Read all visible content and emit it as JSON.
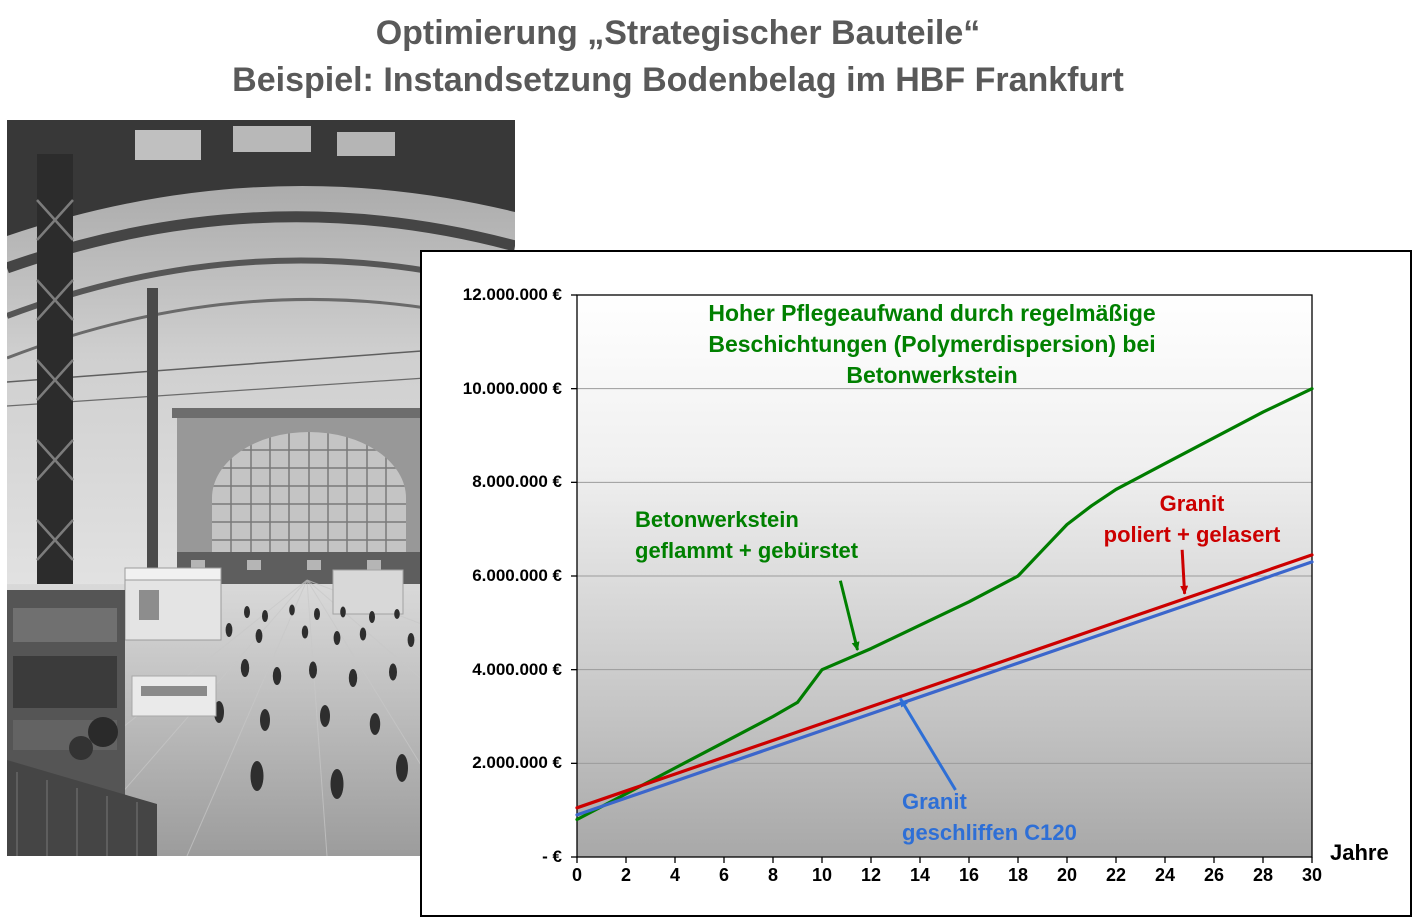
{
  "title": {
    "line1": "Optimierung „Strategischer Bauteile“",
    "line2": "Beispiel: Instandsetzung Bodenbelag im HBF Frankfurt",
    "color": "#595959"
  },
  "chart_data": {
    "type": "line",
    "title": "",
    "xlabel": "Jahre",
    "ylabel": "",
    "xlim": [
      0,
      30
    ],
    "ylim": [
      0,
      12000000
    ],
    "grid": "horizontal",
    "legend": "none",
    "x_ticks": [
      0,
      2,
      4,
      6,
      8,
      10,
      12,
      14,
      16,
      18,
      20,
      22,
      24,
      26,
      28,
      30
    ],
    "y_ticks": [
      {
        "value": 12000000,
        "label": "12.000.000 €"
      },
      {
        "value": 10000000,
        "label": "10.000.000 €"
      },
      {
        "value": 8000000,
        "label": "8.000.000 €"
      },
      {
        "value": 6000000,
        "label": "6.000.000 €"
      },
      {
        "value": 4000000,
        "label": "4.000.000 €"
      },
      {
        "value": 2000000,
        "label": "2.000.000 €"
      },
      {
        "value": 0,
        "label": "- €"
      }
    ],
    "series": [
      {
        "name": "Betonwerkstein geflammt + gebürstet",
        "color": "#007d00",
        "points": [
          [
            0,
            800000
          ],
          [
            2,
            1350000
          ],
          [
            4,
            1900000
          ],
          [
            6,
            2450000
          ],
          [
            8,
            3000000
          ],
          [
            9,
            3300000
          ],
          [
            10,
            4000000
          ],
          [
            12,
            4450000
          ],
          [
            14,
            4950000
          ],
          [
            16,
            5450000
          ],
          [
            18,
            6000000
          ],
          [
            19,
            6550000
          ],
          [
            20,
            7100000
          ],
          [
            21,
            7500000
          ],
          [
            22,
            7850000
          ],
          [
            24,
            8400000
          ],
          [
            26,
            8950000
          ],
          [
            28,
            9500000
          ],
          [
            30,
            10000000
          ]
        ]
      },
      {
        "name": "Granit poliert + gelasert",
        "color": "#cc0000",
        "points": [
          [
            0,
            1050000
          ],
          [
            30,
            6450000
          ]
        ]
      },
      {
        "name": "Granit geschliffen C120",
        "color": "#3b66cc",
        "points": [
          [
            0,
            900000
          ],
          [
            30,
            6300000
          ]
        ]
      }
    ],
    "annotations": [
      {
        "id": "pflegeaufwand-note",
        "color": "#008000",
        "lines": [
          "Hoher Pflegeaufwand durch regelmäßige",
          "Beschichtungen (Polymerdispersion)  bei",
          "Betonwerkstein"
        ]
      },
      {
        "id": "betonwerkstein-label",
        "color": "#008000",
        "lines": [
          "Betonwerkstein",
          "geflammt + gebürstet"
        ],
        "arrow": {
          "from": [
            10.75,
            5900000
          ],
          "to": [
            11.45,
            4420000
          ]
        }
      },
      {
        "id": "granit-poliert-label",
        "color": "#cc0000",
        "lines": [
          "Granit",
          "poliert + gelasert"
        ],
        "arrow": {
          "from": [
            24.7,
            6560000
          ],
          "to": [
            24.8,
            5620000
          ]
        }
      },
      {
        "id": "granit-geschliffen-label",
        "color": "#2e6fd6",
        "lines": [
          "Granit",
          "geschliffen C120"
        ],
        "arrow": {
          "from": [
            15.45,
            1430000
          ],
          "to": [
            13.2,
            3380000
          ]
        }
      }
    ]
  }
}
